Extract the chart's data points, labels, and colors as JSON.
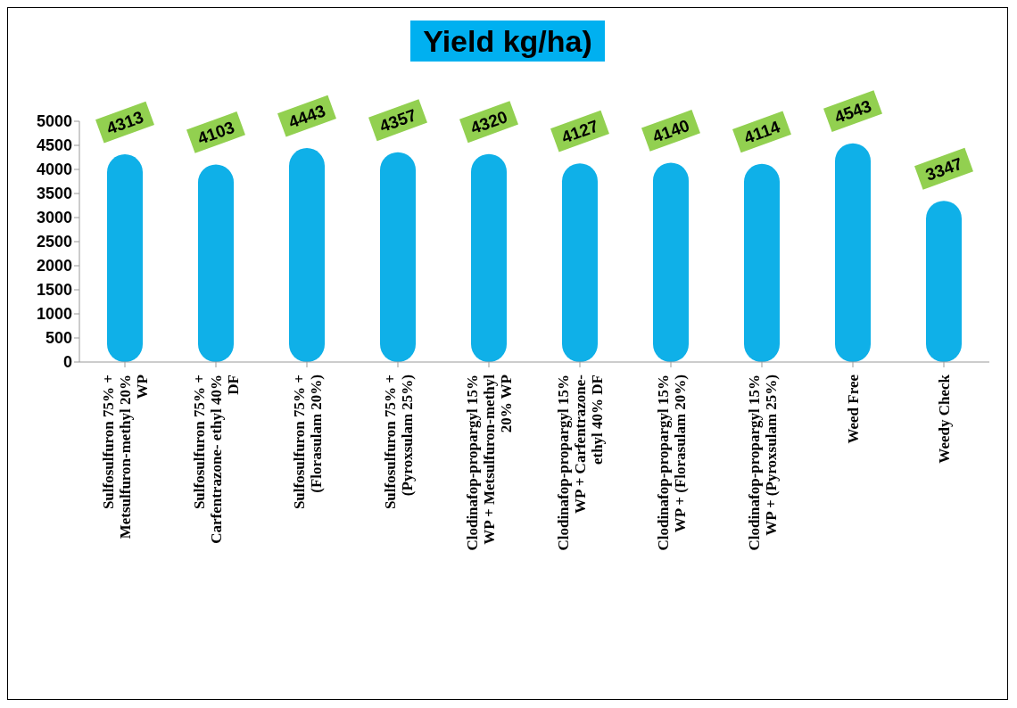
{
  "chart_data": {
    "type": "bar",
    "title": "Yield kg/ha)",
    "categories": [
      "Sulfosulfuron 75% + Metsulfuron-methyl 20% WP",
      "Sulfosulfuron 75% + Carfentrazone- ethyl 40% DF",
      "Sulfosulfuron 75% + (Florasulam 20%)",
      "Sulfosulfuron 75% + (Pyroxsulam 25%)",
      "Clodinafop-propargyl 15% WP + Metsulfuron-methyl 20% WP",
      "Clodinafop-propargyl 15% WP + Carfentrazone- ethyl 40% DF",
      "Clodinafop-propargyl 15% WP + (Florasulam 20%)",
      "Clodinafop-propargyl 15% WP + (Pyroxsulam 25%)",
      "Weed Free",
      "Weedy Check"
    ],
    "values": [
      4313,
      4103,
      4443,
      4357,
      4320,
      4127,
      4140,
      4114,
      4543,
      3347
    ],
    "color": "#0fb0e8",
    "ylim": [
      0,
      5000
    ],
    "yticks": [
      0,
      500,
      1000,
      1500,
      2000,
      2500,
      3000,
      3500,
      4000,
      4500,
      5000
    ],
    "data_labels": true
  }
}
